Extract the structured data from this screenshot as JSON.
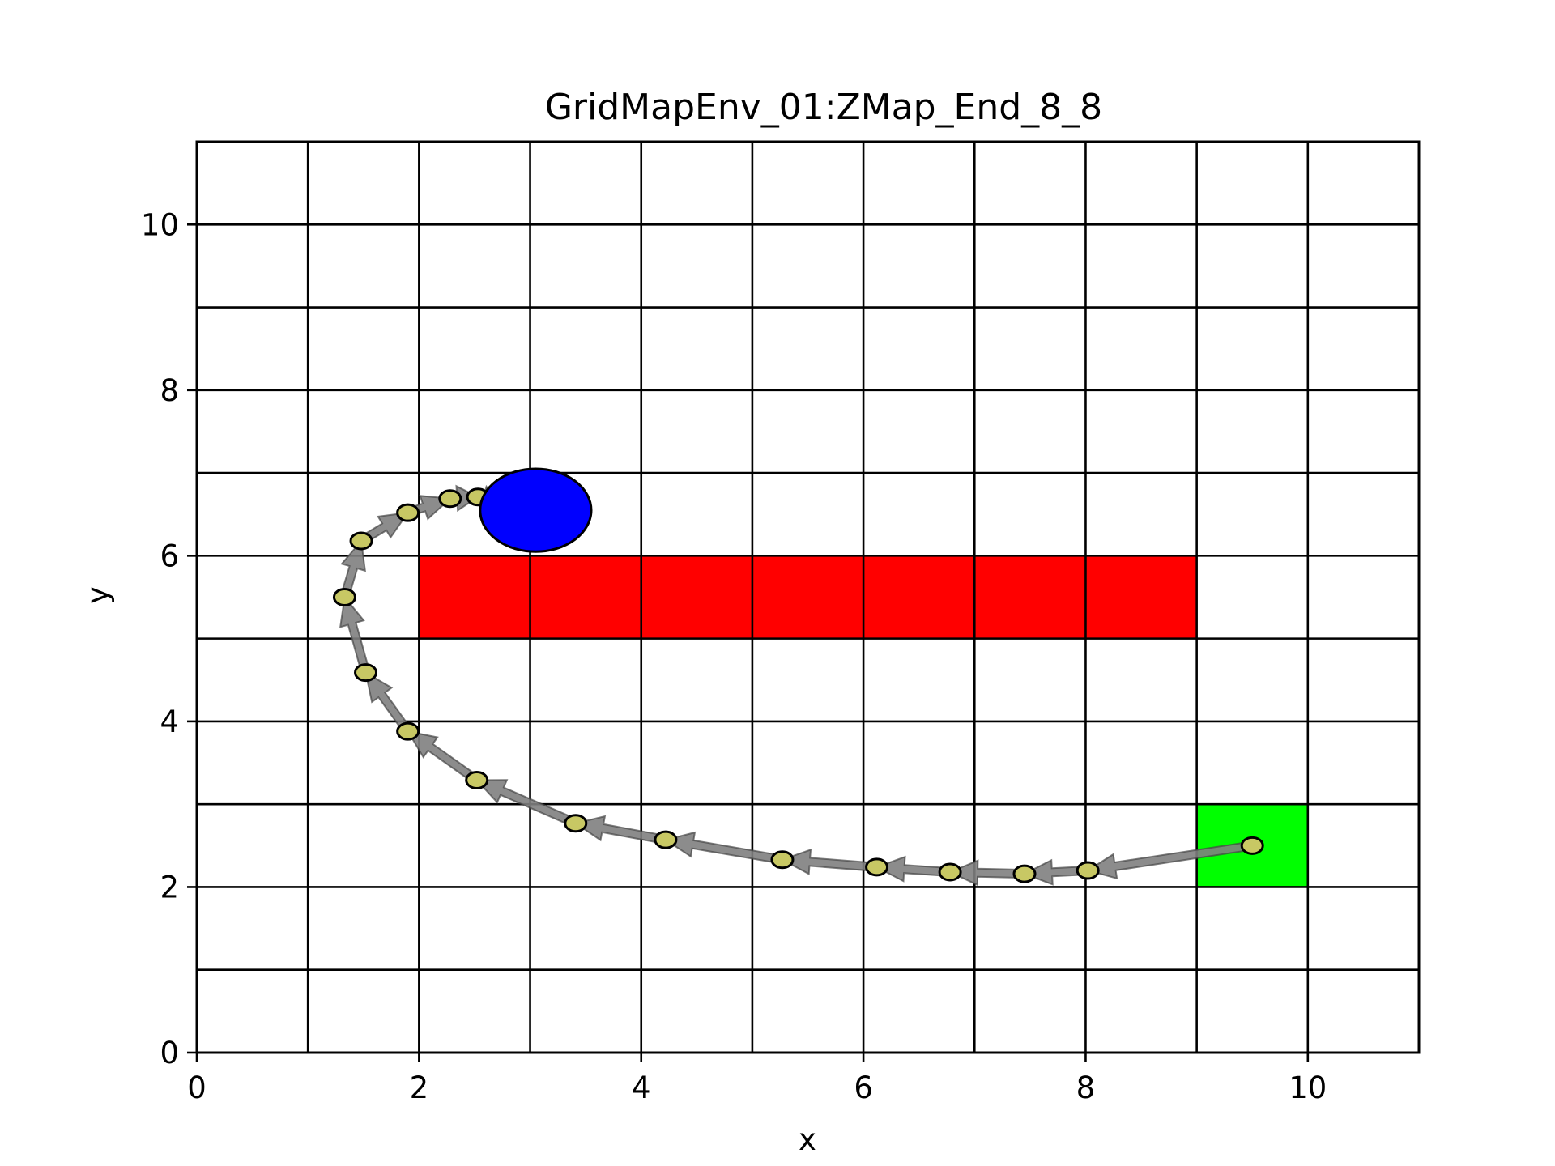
{
  "chart_data": {
    "type": "scatter",
    "title": "GridMapEnv_01:ZMap_End_8_8",
    "xlabel": "x",
    "ylabel": "y",
    "xlim": [
      0,
      11
    ],
    "ylim": [
      0,
      11
    ],
    "grid": true,
    "grid_step": 1,
    "xticks": [
      0,
      2,
      4,
      6,
      8,
      10
    ],
    "yticks": [
      0,
      2,
      4,
      6,
      8,
      10
    ],
    "xtick_labels": [
      "0",
      "2",
      "4",
      "6",
      "8",
      "10"
    ],
    "ytick_labels": [
      "0",
      "2",
      "4",
      "6",
      "8",
      "10"
    ],
    "obstacle_cells": [
      [
        2,
        5
      ],
      [
        3,
        5
      ],
      [
        4,
        5
      ],
      [
        5,
        5
      ],
      [
        6,
        5
      ],
      [
        7,
        5
      ],
      [
        8,
        5
      ]
    ],
    "start_cell": [
      9,
      2
    ],
    "end_circle": {
      "center": [
        3.05,
        6.55
      ],
      "radius_x": 0.5,
      "radius_y": 0.5
    },
    "path": [
      [
        9.5,
        2.5
      ],
      [
        8.02,
        2.2
      ],
      [
        7.45,
        2.16
      ],
      [
        6.78,
        2.18
      ],
      [
        6.12,
        2.24
      ],
      [
        5.27,
        2.33
      ],
      [
        4.22,
        2.57
      ],
      [
        3.41,
        2.77
      ],
      [
        2.52,
        3.29
      ],
      [
        1.9,
        3.88
      ],
      [
        1.52,
        4.59
      ],
      [
        1.33,
        5.5
      ],
      [
        1.48,
        6.18
      ],
      [
        1.9,
        6.52
      ],
      [
        2.28,
        6.69
      ],
      [
        2.53,
        6.71
      ],
      [
        2.72,
        6.64
      ]
    ],
    "colors": {
      "obstacle": "#ff0000",
      "start": "#00ff00",
      "end": "#0000ff",
      "arrow": "#808080",
      "point": "#c8c864",
      "grid": "#000000"
    }
  }
}
